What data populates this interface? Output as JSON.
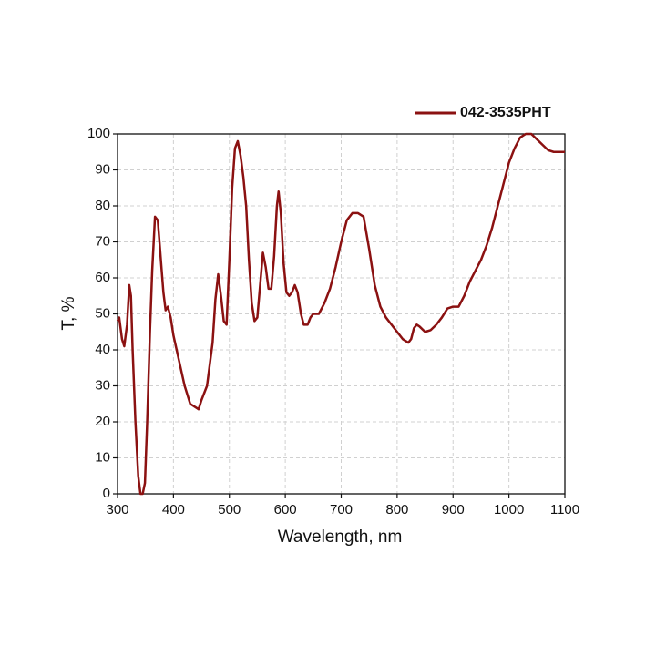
{
  "chart_data": {
    "type": "line",
    "xlabel": "Wavelength, nm",
    "ylabel": "T, %",
    "xlim": [
      300,
      1100
    ],
    "ylim": [
      0,
      100
    ],
    "xticks": [
      300,
      400,
      500,
      600,
      700,
      800,
      900,
      1000,
      1100
    ],
    "yticks": [
      0,
      10,
      20,
      30,
      40,
      50,
      60,
      70,
      80,
      90,
      100
    ],
    "grid": true,
    "legend": "top-right",
    "series": [
      {
        "name": "042-3535PHT",
        "color": "#8b1111",
        "x": [
          300,
          303,
          308,
          312,
          317,
          321,
          324,
          327,
          332,
          337,
          341,
          345,
          349,
          353,
          358,
          362,
          367,
          372,
          376,
          382,
          386,
          390,
          395,
          400,
          410,
          420,
          430,
          440,
          445,
          450,
          460,
          470,
          475,
          480,
          485,
          490,
          495,
          500,
          505,
          510,
          515,
          520,
          525,
          530,
          535,
          540,
          545,
          550,
          555,
          560,
          565,
          570,
          575,
          580,
          585,
          588,
          592,
          597,
          602,
          607,
          612,
          617,
          622,
          628,
          633,
          640,
          645,
          650,
          660,
          670,
          680,
          690,
          700,
          710,
          720,
          730,
          740,
          750,
          760,
          770,
          780,
          790,
          800,
          810,
          820,
          825,
          830,
          835,
          840,
          850,
          860,
          870,
          880,
          890,
          900,
          910,
          920,
          930,
          940,
          950,
          960,
          970,
          980,
          990,
          1000,
          1010,
          1020,
          1030,
          1040,
          1050,
          1060,
          1070,
          1080,
          1090,
          1100
        ],
        "values": [
          48,
          49,
          43,
          41,
          47,
          58,
          55,
          40,
          20,
          5,
          0,
          0,
          3,
          20,
          45,
          62,
          77,
          76,
          68,
          56,
          51,
          52,
          49,
          44,
          37,
          30,
          25,
          24,
          23.5,
          26,
          30,
          42,
          54,
          61,
          55,
          48,
          47,
          65,
          85,
          96,
          98,
          94,
          88,
          80,
          65,
          53,
          48,
          49,
          58,
          67,
          63,
          57,
          57,
          66,
          80,
          84,
          78,
          64,
          56,
          55,
          56,
          58,
          56,
          50,
          47,
          47,
          49,
          50,
          50,
          53,
          57,
          63,
          70,
          76,
          78,
          78,
          77,
          68,
          58,
          52,
          49,
          47,
          45,
          43,
          42,
          43,
          46,
          47,
          46.5,
          45,
          45.5,
          47,
          49,
          51.5,
          52,
          52,
          55,
          59,
          62,
          65,
          69,
          74,
          80,
          86,
          92,
          96,
          99,
          100,
          100,
          98.5,
          97,
          95.5,
          95,
          95,
          95
        ]
      }
    ]
  }
}
